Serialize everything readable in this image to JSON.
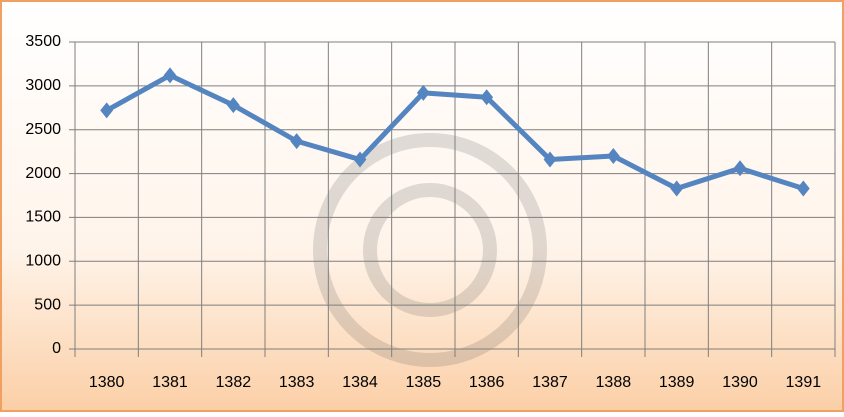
{
  "chart_data": {
    "type": "line",
    "categories": [
      "1380",
      "1381",
      "1382",
      "1383",
      "1384",
      "1385",
      "1386",
      "1387",
      "1388",
      "1389",
      "1390",
      "1391"
    ],
    "series": [
      {
        "color": "#5585c0",
        "values": [
          2720,
          3120,
          2780,
          2370,
          2160,
          2920,
          2870,
          2160,
          2200,
          1830,
          2060,
          1830
        ]
      }
    ],
    "ylim": [
      0,
      3500
    ],
    "yticks": [
      0,
      500,
      1000,
      1500,
      2000,
      2500,
      3000,
      3500
    ],
    "grid": true
  }
}
